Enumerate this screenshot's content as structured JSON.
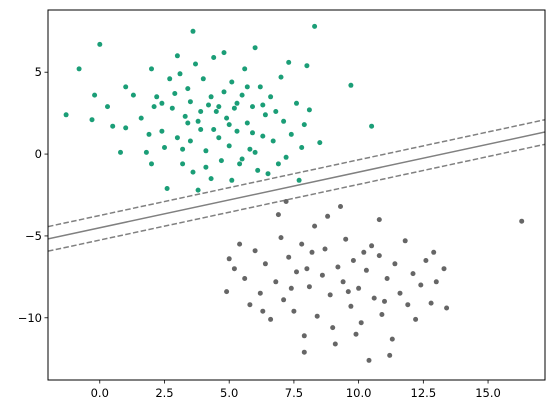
{
  "chart_data": {
    "type": "scatter",
    "title": "",
    "xlabel": "",
    "ylabel": "",
    "xlim": [
      -2.0,
      17.2
    ],
    "ylim": [
      -13.8,
      8.8
    ],
    "xticks": [
      0.0,
      2.5,
      5.0,
      7.5,
      10.0,
      12.5,
      15.0
    ],
    "xtick_labels": [
      "0.0",
      "2.5",
      "5.0",
      "7.5",
      "10.0",
      "12.5",
      "15.0"
    ],
    "yticks": [
      5,
      0,
      -5,
      -10
    ],
    "ytick_labels": [
      "5",
      "0",
      "−5",
      "−10"
    ],
    "grid": false,
    "colors": {
      "class_a": "#1b9e77",
      "class_b": "#666666",
      "boundary": "#808080"
    },
    "decision_boundary": {
      "slope": 0.34,
      "intercept": -4.5,
      "margin_offset": 0.75,
      "lines": [
        {
          "role": "margin-upper",
          "style": "dashed"
        },
        {
          "role": "boundary",
          "style": "solid"
        },
        {
          "role": "margin-lower",
          "style": "dashed"
        }
      ]
    },
    "series": [
      {
        "class": "a",
        "color": "#1b9e77",
        "points": [
          [
            -1.3,
            2.4
          ],
          [
            -0.8,
            5.2
          ],
          [
            -0.3,
            2.1
          ],
          [
            -0.2,
            3.6
          ],
          [
            0.0,
            6.7
          ],
          [
            0.3,
            2.9
          ],
          [
            0.5,
            1.7
          ],
          [
            1.0,
            4.1
          ],
          [
            1.3,
            3.6
          ],
          [
            1.6,
            2.2
          ],
          [
            1.8,
            0.1
          ],
          [
            2.0,
            5.2
          ],
          [
            2.2,
            3.5
          ],
          [
            2.4,
            1.4
          ],
          [
            2.5,
            0.4
          ],
          [
            2.6,
            -2.1
          ],
          [
            2.7,
            4.6
          ],
          [
            2.8,
            2.8
          ],
          [
            3.0,
            6.0
          ],
          [
            3.0,
            1.0
          ],
          [
            3.2,
            -0.6
          ],
          [
            3.3,
            2.3
          ],
          [
            3.4,
            4.0
          ],
          [
            3.5,
            3.2
          ],
          [
            3.5,
            0.8
          ],
          [
            3.6,
            -1.1
          ],
          [
            3.7,
            5.5
          ],
          [
            3.8,
            2.0
          ],
          [
            3.8,
            -2.2
          ],
          [
            3.9,
            1.5
          ],
          [
            4.0,
            4.6
          ],
          [
            4.1,
            0.2
          ],
          [
            4.2,
            3.0
          ],
          [
            4.3,
            -1.5
          ],
          [
            4.4,
            5.9
          ],
          [
            4.5,
            2.6
          ],
          [
            4.6,
            1.0
          ],
          [
            4.7,
            -0.4
          ],
          [
            4.8,
            3.8
          ],
          [
            4.9,
            2.2
          ],
          [
            5.0,
            0.5
          ],
          [
            5.1,
            4.4
          ],
          [
            5.1,
            -1.6
          ],
          [
            5.2,
            2.8
          ],
          [
            5.3,
            1.4
          ],
          [
            5.4,
            -0.6
          ],
          [
            5.5,
            3.6
          ],
          [
            5.6,
            5.2
          ],
          [
            5.7,
            1.9
          ],
          [
            5.8,
            0.3
          ],
          [
            5.9,
            2.9
          ],
          [
            6.0,
            6.5
          ],
          [
            6.1,
            -1.0
          ],
          [
            6.2,
            4.1
          ],
          [
            6.3,
            1.1
          ],
          [
            6.4,
            2.4
          ],
          [
            6.6,
            3.5
          ],
          [
            6.7,
            0.8
          ],
          [
            6.9,
            -0.6
          ],
          [
            7.0,
            4.7
          ],
          [
            7.1,
            2.0
          ],
          [
            7.3,
            5.6
          ],
          [
            7.4,
            1.2
          ],
          [
            7.6,
            3.1
          ],
          [
            7.7,
            -1.6
          ],
          [
            7.8,
            0.4
          ],
          [
            8.0,
            5.4
          ],
          [
            8.1,
            2.7
          ],
          [
            8.3,
            7.8
          ],
          [
            8.5,
            0.7
          ],
          [
            9.7,
            4.2
          ],
          [
            10.5,
            1.7
          ],
          [
            1.0,
            1.6
          ],
          [
            2.1,
            2.9
          ],
          [
            3.1,
            4.9
          ],
          [
            4.3,
            3.5
          ],
          [
            5.5,
            -0.3
          ],
          [
            6.5,
            -1.2
          ],
          [
            4.1,
            -0.8
          ],
          [
            3.2,
            0.3
          ],
          [
            2.4,
            3.1
          ],
          [
            5.7,
            4.1
          ],
          [
            4.8,
            6.2
          ],
          [
            3.6,
            7.5
          ],
          [
            1.9,
            1.2
          ],
          [
            7.2,
            -0.2
          ],
          [
            6.8,
            2.6
          ],
          [
            4.6,
            2.9
          ],
          [
            5.3,
            3.1
          ],
          [
            3.9,
            2.6
          ],
          [
            0.8,
            0.1
          ],
          [
            2.0,
            -0.6
          ],
          [
            6.0,
            0.1
          ],
          [
            7.9,
            1.8
          ],
          [
            5.0,
            1.8
          ],
          [
            3.4,
            1.9
          ],
          [
            4.4,
            1.5
          ],
          [
            6.3,
            3.0
          ],
          [
            2.9,
            3.7
          ],
          [
            5.9,
            1.3
          ]
        ]
      },
      {
        "class": "b",
        "color": "#666666",
        "points": [
          [
            4.9,
            -8.4
          ],
          [
            5.0,
            -6.4
          ],
          [
            5.2,
            -7.0
          ],
          [
            5.6,
            -7.6
          ],
          [
            5.8,
            -9.2
          ],
          [
            6.0,
            -5.9
          ],
          [
            6.2,
            -8.5
          ],
          [
            6.4,
            -6.7
          ],
          [
            6.6,
            -10.1
          ],
          [
            6.8,
            -7.8
          ],
          [
            7.0,
            -5.1
          ],
          [
            7.1,
            -8.9
          ],
          [
            7.3,
            -6.3
          ],
          [
            7.5,
            -9.6
          ],
          [
            7.6,
            -7.2
          ],
          [
            7.8,
            -5.5
          ],
          [
            7.9,
            -11.1
          ],
          [
            8.1,
            -8.1
          ],
          [
            8.2,
            -6.0
          ],
          [
            8.4,
            -9.9
          ],
          [
            8.6,
            -7.4
          ],
          [
            8.7,
            -5.8
          ],
          [
            8.9,
            -8.6
          ],
          [
            9.0,
            -10.6
          ],
          [
            9.2,
            -6.9
          ],
          [
            9.4,
            -7.8
          ],
          [
            9.5,
            -5.2
          ],
          [
            9.7,
            -9.3
          ],
          [
            9.8,
            -6.5
          ],
          [
            10.0,
            -8.2
          ],
          [
            10.1,
            -10.3
          ],
          [
            10.3,
            -7.1
          ],
          [
            10.5,
            -5.6
          ],
          [
            10.6,
            -8.8
          ],
          [
            10.8,
            -6.2
          ],
          [
            10.9,
            -9.8
          ],
          [
            11.1,
            -7.6
          ],
          [
            11.3,
            -11.3
          ],
          [
            11.4,
            -6.7
          ],
          [
            11.6,
            -8.5
          ],
          [
            11.8,
            -5.3
          ],
          [
            11.9,
            -9.2
          ],
          [
            12.1,
            -7.3
          ],
          [
            12.4,
            -8.0
          ],
          [
            12.6,
            -6.5
          ],
          [
            12.8,
            -9.1
          ],
          [
            13.0,
            -7.8
          ],
          [
            13.4,
            -9.4
          ],
          [
            10.4,
            -12.6
          ],
          [
            11.2,
            -12.3
          ],
          [
            9.3,
            -3.2
          ],
          [
            7.2,
            -2.9
          ],
          [
            8.8,
            -3.8
          ],
          [
            10.8,
            -4.0
          ],
          [
            16.3,
            -4.1
          ],
          [
            7.9,
            -12.1
          ],
          [
            9.1,
            -11.6
          ],
          [
            12.2,
            -10.1
          ],
          [
            6.9,
            -3.7
          ],
          [
            8.3,
            -4.4
          ],
          [
            9.6,
            -8.4
          ],
          [
            10.2,
            -6.0
          ],
          [
            8.0,
            -7.0
          ],
          [
            11.0,
            -9.0
          ],
          [
            9.9,
            -11.0
          ],
          [
            7.4,
            -8.2
          ],
          [
            12.9,
            -6.0
          ],
          [
            6.3,
            -9.6
          ],
          [
            5.4,
            -5.5
          ],
          [
            13.3,
            -7.0
          ]
        ]
      }
    ]
  }
}
